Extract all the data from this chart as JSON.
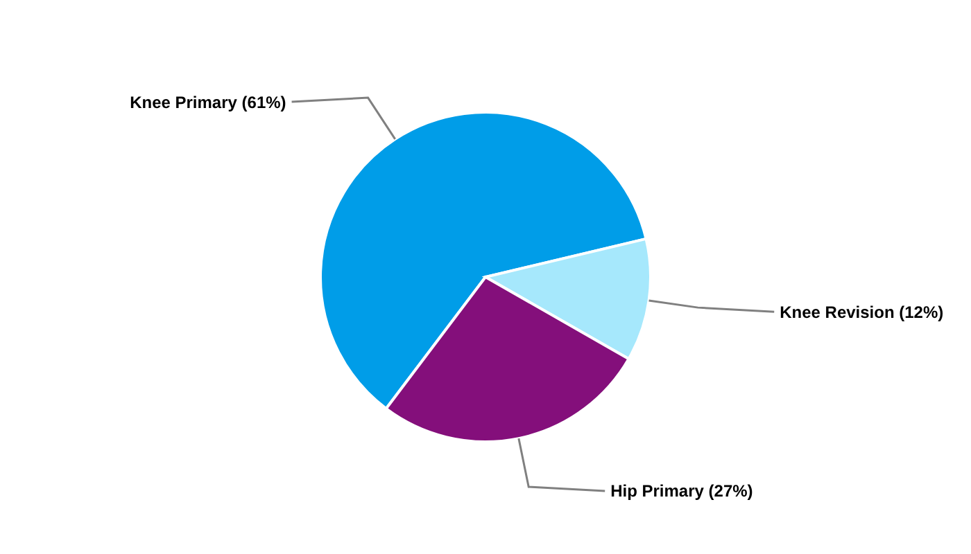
{
  "chart_data": {
    "type": "pie",
    "categories": [
      "Knee Primary",
      "Knee Revision",
      "Hip Primary"
    ],
    "values": [
      61,
      12,
      27
    ],
    "value_labels": [
      "(61%)",
      "(12%)",
      "(27%)"
    ],
    "colors": [
      "#009de8",
      "#a6e8fc",
      "#840f7b"
    ]
  }
}
